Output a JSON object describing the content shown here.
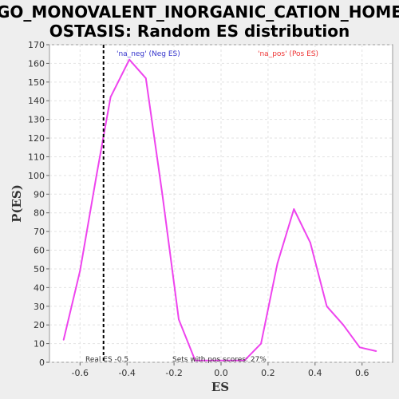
{
  "chart_data": {
    "type": "line",
    "title_line1": "GO_MONOVALENT_INORGANIC_CATION_HOME",
    "title_line2": "OSTASIS: Random ES distribution",
    "xlabel": "ES",
    "ylabel": "P(ES)",
    "xlim": [
      -0.73,
      0.73
    ],
    "ylim": [
      0,
      170
    ],
    "x_ticks": [
      -0.6,
      -0.4,
      -0.2,
      0.0,
      0.2,
      0.4,
      0.6
    ],
    "x_tick_labels": [
      "-0.6",
      "-0.4",
      "-0.2",
      "0.0",
      "0.2",
      "0.4",
      "0.6"
    ],
    "y_ticks": [
      0,
      10,
      20,
      30,
      40,
      50,
      60,
      70,
      80,
      90,
      100,
      110,
      120,
      130,
      140,
      150,
      160,
      170
    ],
    "y_tick_labels": [
      "0",
      "10",
      "20",
      "30",
      "40",
      "50",
      "60",
      "70",
      "80",
      "90",
      "100",
      "110",
      "120",
      "130",
      "140",
      "150",
      "160",
      "170"
    ],
    "grid": true,
    "series": [
      {
        "color": "#ee44ee",
        "x": [
          -0.67,
          -0.6,
          -0.53,
          -0.47,
          -0.39,
          -0.32,
          -0.25,
          -0.18,
          -0.11,
          -0.04,
          0.03,
          0.1,
          0.17,
          0.24,
          0.31,
          0.38,
          0.45,
          0.52,
          0.59,
          0.66
        ],
        "y": [
          12,
          49,
          100,
          142,
          162,
          152,
          90,
          23,
          1,
          1,
          1,
          1,
          10,
          53,
          82,
          64,
          30,
          20,
          8,
          6
        ]
      }
    ],
    "real_es": -0.5,
    "real_es_label": "Real ES -0.5",
    "pos_sets_label": "Sets with pos scores: 27%",
    "legend": [
      {
        "label": "'na_neg' (Neg ES)",
        "color": "#3333cc"
      },
      {
        "label": "'na_pos' (Pos ES)",
        "color": "#ee3333"
      }
    ]
  }
}
